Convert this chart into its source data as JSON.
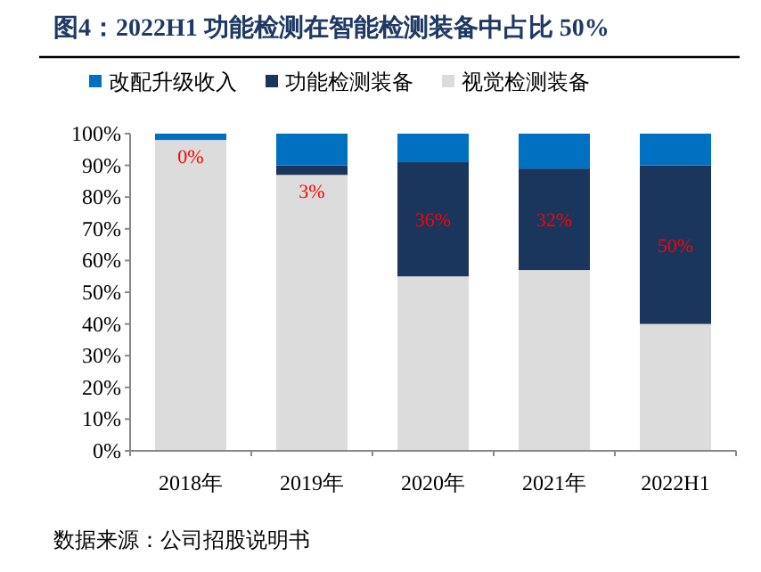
{
  "chart_data": {
    "type": "bar",
    "title": "图4：2022H1 功能检测在智能检测装备中占比 50%",
    "annotations": [
      "数据来源：公司招股说明书"
    ],
    "categories": [
      "2018年",
      "2019年",
      "2020年",
      "2021年",
      "2022H1"
    ],
    "stacked": true,
    "legend": "top",
    "ylim": [
      0,
      100
    ],
    "yticks": [
      {
        "value": 0,
        "label": "0%"
      },
      {
        "value": 10,
        "label": "10%"
      },
      {
        "value": 20,
        "label": "20%"
      },
      {
        "value": 30,
        "label": "30%"
      },
      {
        "value": 40,
        "label": "40%"
      },
      {
        "value": 50,
        "label": "50%"
      },
      {
        "value": 60,
        "label": "60%"
      },
      {
        "value": 70,
        "label": "70%"
      },
      {
        "value": 80,
        "label": "80%"
      },
      {
        "value": 90,
        "label": "90%"
      },
      {
        "value": 100,
        "label": "100%"
      }
    ],
    "series": [
      {
        "name": "视觉检测装备",
        "color": "#dcdcdc",
        "values": [
          98,
          87,
          55,
          57,
          40
        ]
      },
      {
        "name": "功能检测装备",
        "color": "#1a365d",
        "values": [
          0,
          3,
          36,
          32,
          50
        ],
        "value_labels": [
          "0%",
          "3%",
          "36%",
          "32%",
          "50%"
        ]
      },
      {
        "name": "改配升级收入",
        "color": "#0070c0",
        "values": [
          2,
          10,
          9,
          11,
          10
        ]
      }
    ]
  }
}
